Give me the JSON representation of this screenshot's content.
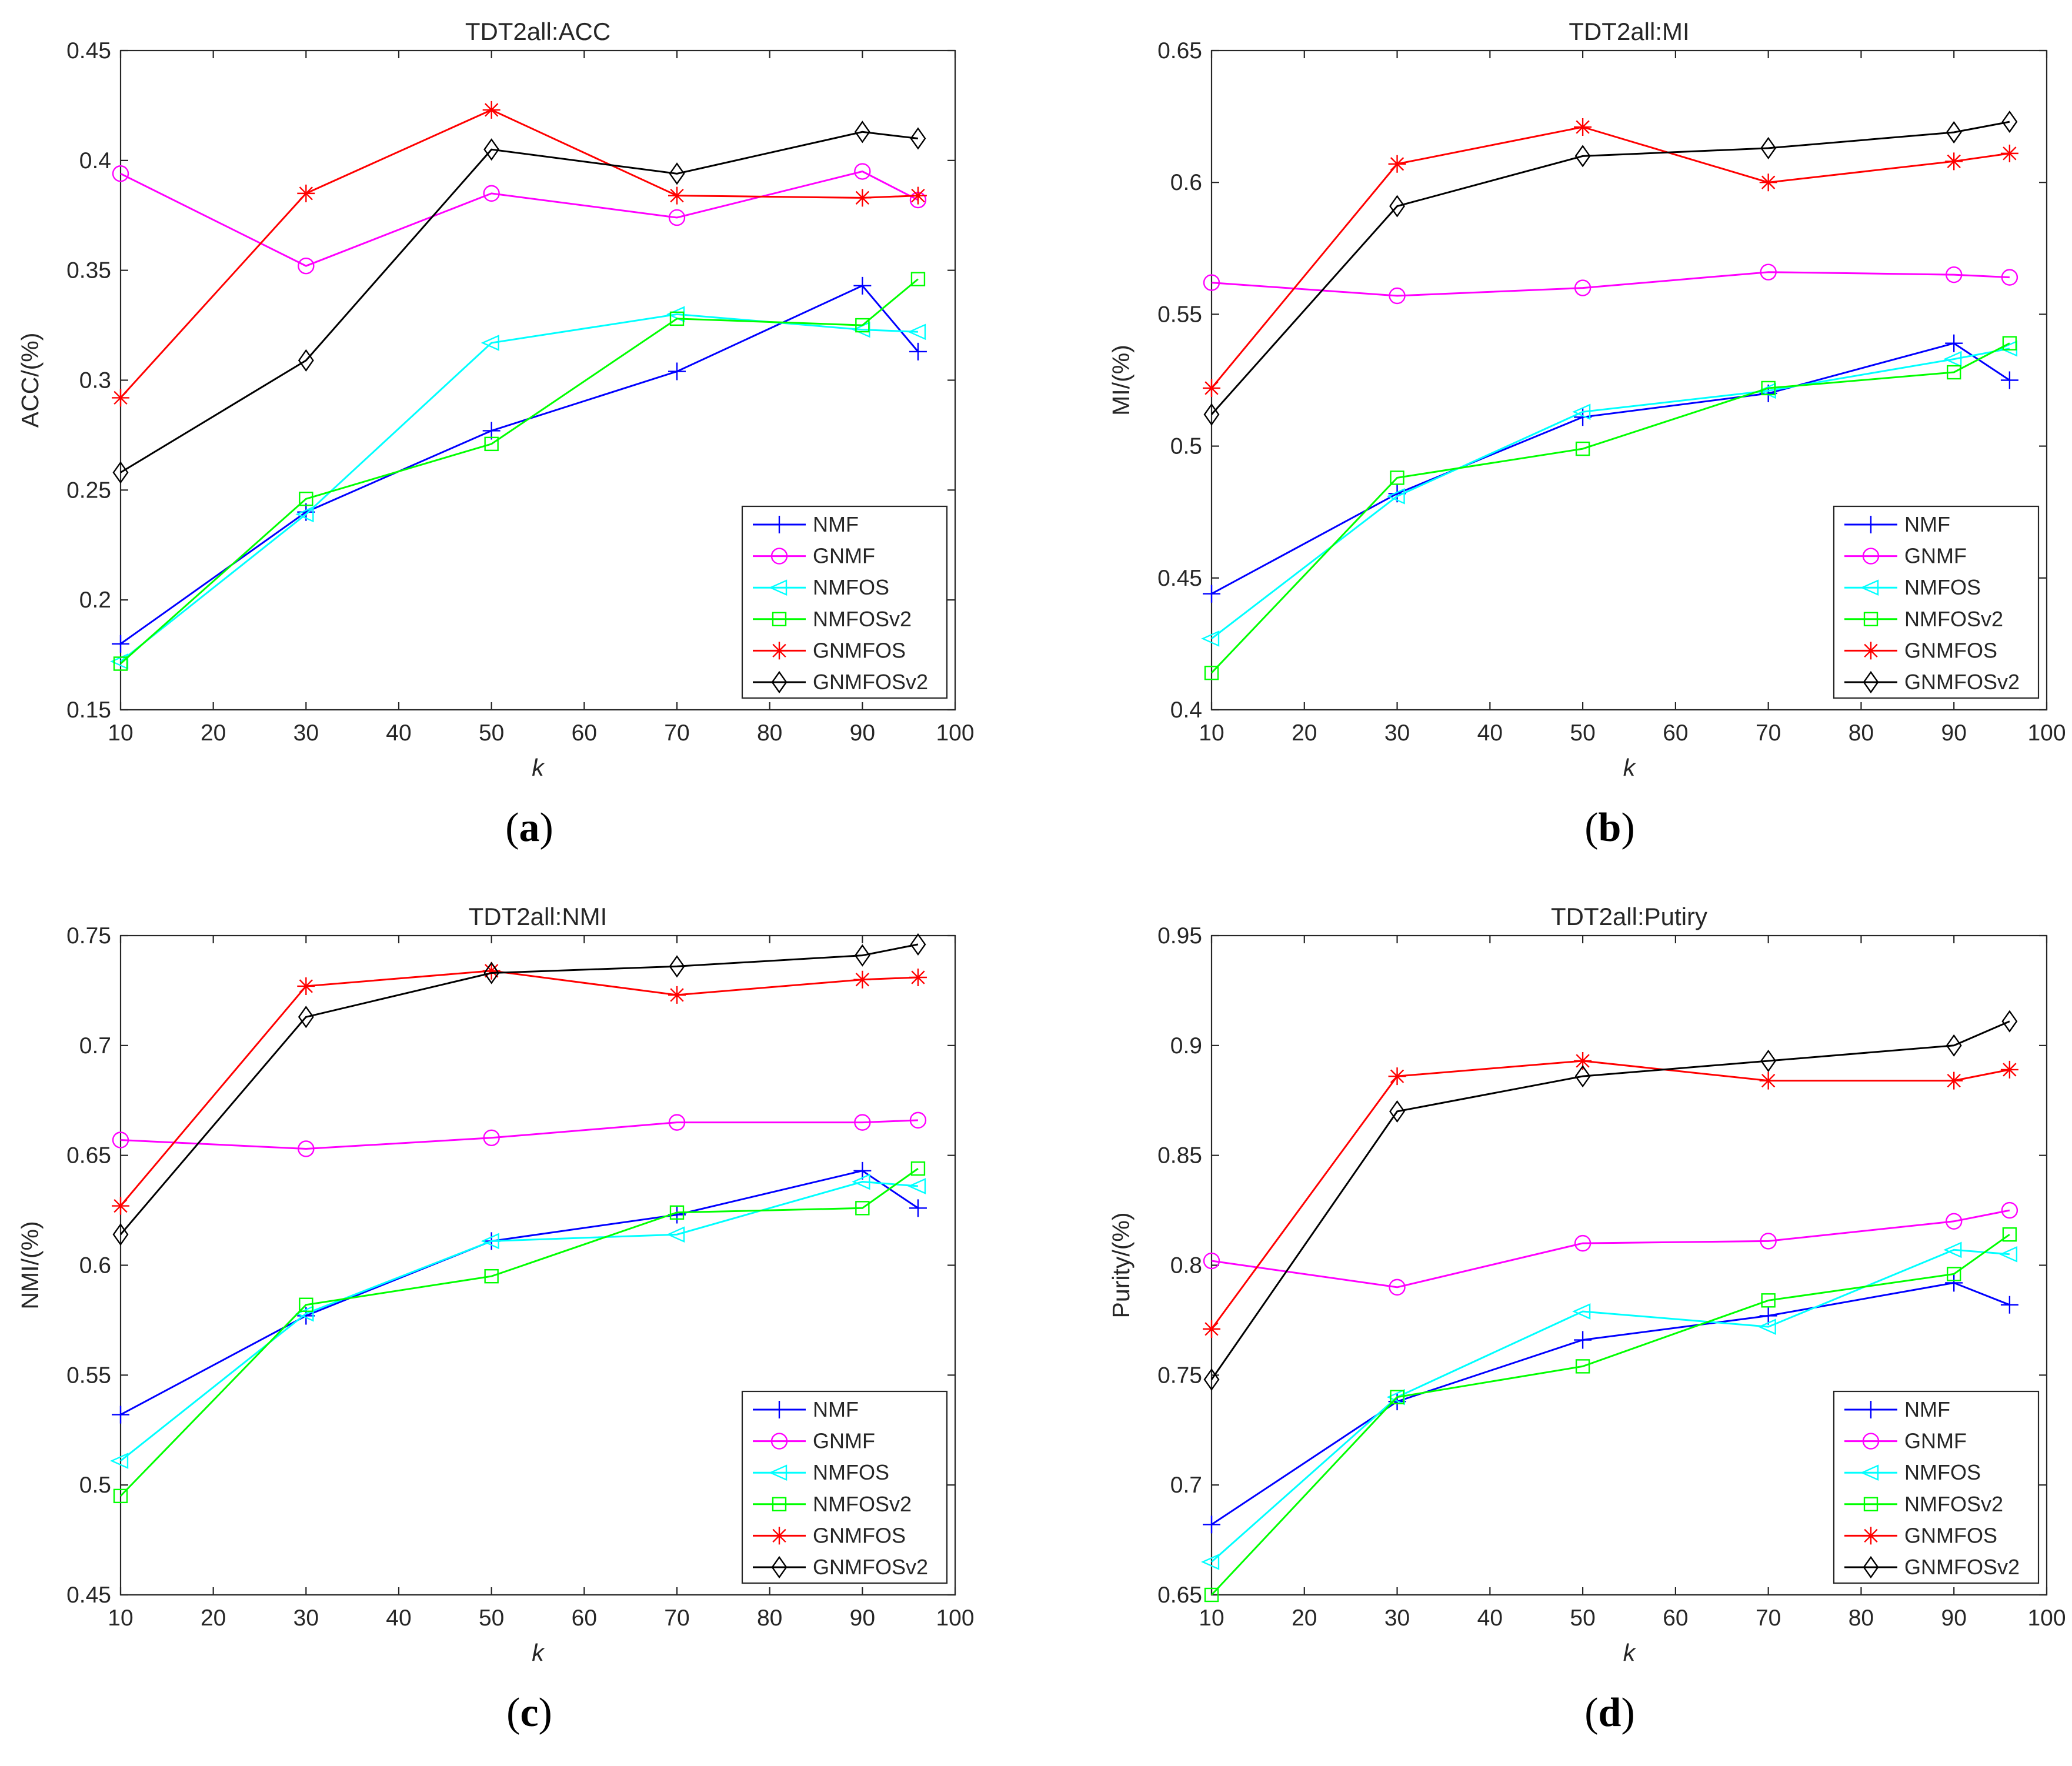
{
  "chart_data": [
    {
      "type": "line",
      "panel": "(a)",
      "title": "TDT2all:ACC",
      "xlabel": "k",
      "ylabel": "ACC/(%)",
      "xlim": [
        10,
        100
      ],
      "ylim": [
        0.15,
        0.45
      ],
      "xticks": [
        "10",
        "20",
        "30",
        "40",
        "50",
        "60",
        "70",
        "80",
        "90",
        "100"
      ],
      "yticks": [
        "0.15",
        "0.2",
        "0.25",
        "0.3",
        "0.35",
        "0.4",
        "0.45"
      ],
      "legend_position": "bottom-right",
      "x": [
        10,
        30,
        50,
        70,
        90,
        96
      ],
      "series": [
        {
          "name": "NMF",
          "color": "#0000ff",
          "marker": "plus",
          "values": [
            0.18,
            0.24,
            0.277,
            0.304,
            0.343,
            0.313
          ]
        },
        {
          "name": "GNMF",
          "color": "#ff00ff",
          "marker": "circle",
          "values": [
            0.394,
            0.352,
            0.385,
            0.374,
            0.395,
            0.382
          ]
        },
        {
          "name": "NMFOS",
          "color": "#00ffff",
          "marker": "triangle-left",
          "values": [
            0.172,
            0.239,
            0.317,
            0.33,
            0.323,
            0.322
          ]
        },
        {
          "name": "NMFOSv2",
          "color": "#00ff00",
          "marker": "square",
          "values": [
            0.171,
            0.246,
            0.271,
            0.328,
            0.325,
            0.346
          ]
        },
        {
          "name": "GNMFOS",
          "color": "#ff0000",
          "marker": "asterisk",
          "values": [
            0.292,
            0.385,
            0.423,
            0.384,
            0.383,
            0.384
          ]
        },
        {
          "name": "GNMFOSv2",
          "color": "#000000",
          "marker": "diamond",
          "values": [
            0.258,
            0.309,
            0.405,
            0.394,
            0.413,
            0.41
          ]
        }
      ]
    },
    {
      "type": "line",
      "panel": "(b)",
      "title": "TDT2all:MI",
      "xlabel": "k",
      "ylabel": "MI/(%)",
      "xlim": [
        10,
        100
      ],
      "ylim": [
        0.4,
        0.65
      ],
      "xticks": [
        "10",
        "20",
        "30",
        "40",
        "50",
        "60",
        "70",
        "80",
        "90",
        "100"
      ],
      "yticks": [
        "0.4",
        "0.45",
        "0.5",
        "0.55",
        "0.6",
        "0.65"
      ],
      "legend_position": "bottom-right",
      "x": [
        10,
        30,
        50,
        70,
        90,
        96
      ],
      "series": [
        {
          "name": "NMF",
          "color": "#0000ff",
          "marker": "plus",
          "values": [
            0.444,
            0.482,
            0.511,
            0.52,
            0.539,
            0.525
          ]
        },
        {
          "name": "GNMF",
          "color": "#ff00ff",
          "marker": "circle",
          "values": [
            0.562,
            0.557,
            0.56,
            0.566,
            0.565,
            0.564
          ]
        },
        {
          "name": "NMFOS",
          "color": "#00ffff",
          "marker": "triangle-left",
          "values": [
            0.427,
            0.481,
            0.513,
            0.521,
            0.533,
            0.537
          ]
        },
        {
          "name": "NMFOSv2",
          "color": "#00ff00",
          "marker": "square",
          "values": [
            0.414,
            0.488,
            0.499,
            0.522,
            0.528,
            0.539
          ]
        },
        {
          "name": "GNMFOS",
          "color": "#ff0000",
          "marker": "asterisk",
          "values": [
            0.522,
            0.607,
            0.621,
            0.6,
            0.608,
            0.611
          ]
        },
        {
          "name": "GNMFOSv2",
          "color": "#000000",
          "marker": "diamond",
          "values": [
            0.512,
            0.591,
            0.61,
            0.613,
            0.619,
            0.623
          ]
        }
      ]
    },
    {
      "type": "line",
      "panel": "(c)",
      "title": "TDT2all:NMI",
      "xlabel": "k",
      "ylabel": "NMI/(%)",
      "xlim": [
        10,
        100
      ],
      "ylim": [
        0.45,
        0.75
      ],
      "xticks": [
        "10",
        "20",
        "30",
        "40",
        "50",
        "60",
        "70",
        "80",
        "90",
        "100"
      ],
      "yticks": [
        "0.45",
        "0.5",
        "0.55",
        "0.6",
        "0.65",
        "0.7",
        "0.75"
      ],
      "legend_position": "bottom-right",
      "x": [
        10,
        30,
        50,
        70,
        90,
        96
      ],
      "series": [
        {
          "name": "NMF",
          "color": "#0000ff",
          "marker": "plus",
          "values": [
            0.532,
            0.577,
            0.611,
            0.623,
            0.643,
            0.626
          ]
        },
        {
          "name": "GNMF",
          "color": "#ff00ff",
          "marker": "circle",
          "values": [
            0.657,
            0.653,
            0.658,
            0.665,
            0.665,
            0.666
          ]
        },
        {
          "name": "NMFOS",
          "color": "#00ffff",
          "marker": "triangle-left",
          "values": [
            0.511,
            0.578,
            0.611,
            0.614,
            0.638,
            0.636
          ]
        },
        {
          "name": "NMFOSv2",
          "color": "#00ff00",
          "marker": "square",
          "values": [
            0.495,
            0.582,
            0.595,
            0.624,
            0.626,
            0.644
          ]
        },
        {
          "name": "GNMFOS",
          "color": "#ff0000",
          "marker": "asterisk",
          "values": [
            0.627,
            0.727,
            0.734,
            0.723,
            0.73,
            0.731
          ]
        },
        {
          "name": "GNMFOSv2",
          "color": "#000000",
          "marker": "diamond",
          "values": [
            0.614,
            0.713,
            0.733,
            0.736,
            0.741,
            0.746
          ]
        }
      ]
    },
    {
      "type": "line",
      "panel": "(d)",
      "title": "TDT2all:Putiry",
      "xlabel": "k",
      "ylabel": "Purity/(%)",
      "xlim": [
        10,
        100
      ],
      "ylim": [
        0.65,
        0.95
      ],
      "xticks": [
        "10",
        "20",
        "30",
        "40",
        "50",
        "60",
        "70",
        "80",
        "90",
        "100"
      ],
      "yticks": [
        "0.65",
        "0.7",
        "0.75",
        "0.8",
        "0.85",
        "0.9",
        "0.95"
      ],
      "legend_position": "bottom-right",
      "x": [
        10,
        30,
        50,
        70,
        90,
        96
      ],
      "series": [
        {
          "name": "NMF",
          "color": "#0000ff",
          "marker": "plus",
          "values": [
            0.682,
            0.738,
            0.766,
            0.777,
            0.792,
            0.782
          ]
        },
        {
          "name": "GNMF",
          "color": "#ff00ff",
          "marker": "circle",
          "values": [
            0.802,
            0.79,
            0.81,
            0.811,
            0.82,
            0.825
          ]
        },
        {
          "name": "NMFOS",
          "color": "#00ffff",
          "marker": "triangle-left",
          "values": [
            0.665,
            0.74,
            0.779,
            0.772,
            0.807,
            0.805
          ]
        },
        {
          "name": "NMFOSv2",
          "color": "#00ff00",
          "marker": "square",
          "values": [
            0.65,
            0.74,
            0.754,
            0.784,
            0.796,
            0.814
          ]
        },
        {
          "name": "GNMFOS",
          "color": "#ff0000",
          "marker": "asterisk",
          "values": [
            0.771,
            0.886,
            0.893,
            0.884,
            0.884,
            0.889
          ]
        },
        {
          "name": "GNMFOSv2",
          "color": "#000000",
          "marker": "diamond",
          "values": [
            0.748,
            0.87,
            0.886,
            0.893,
            0.9,
            0.911
          ]
        }
      ]
    }
  ]
}
